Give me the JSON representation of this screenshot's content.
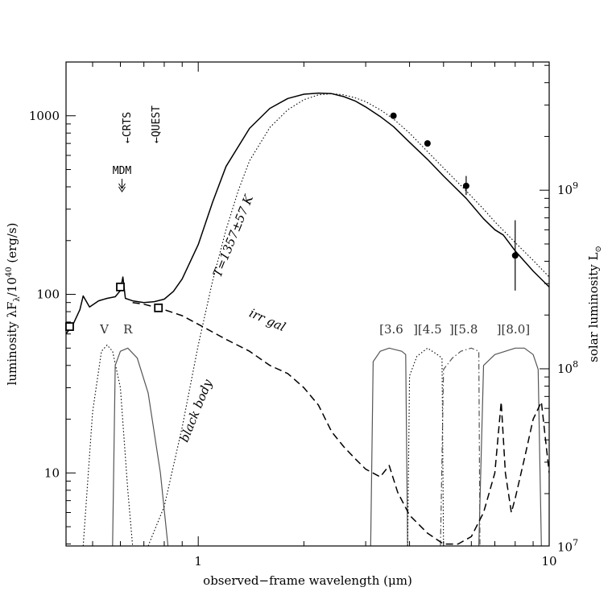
{
  "chart_data": {
    "type": "line",
    "xlabel": "observed−frame wavelength (μm)",
    "ylabel": "luminosity λF",
    "ylabel_sub": "λ",
    "ylabel_tail": "/10",
    "ylabel_exp": "40",
    "ylabel_units": " (erg/s)",
    "ylabel_right": "solar luminosity L",
    "ylabel_right_sub": "⊙",
    "xscale": "log",
    "yscale": "log",
    "xlim": [
      0.42,
      10
    ],
    "ylim": [
      3.9,
      2000
    ],
    "x_ticklabels": [
      "1",
      "10"
    ],
    "y_ticklabels": [
      "10",
      "100",
      "1000"
    ],
    "y_right_ticklabels": [
      {
        "base": "10",
        "exp": "7"
      },
      {
        "base": "10",
        "exp": "8"
      },
      {
        "base": "10",
        "exp": "9"
      }
    ],
    "filters": [
      {
        "label": "V",
        "center": 0.55
      },
      {
        "label": "R",
        "center": 0.65
      },
      {
        "label": "[3.6",
        "center": 3.6
      },
      {
        "label": "][4.5",
        "center": 4.5
      },
      {
        "label": "][5.8",
        "center": 5.8
      },
      {
        "label": "][8.0]",
        "center": 8.0
      }
    ],
    "annotations": [
      {
        "text": "←CRTS",
        "x": 0.62
      },
      {
        "text": "←QUEST",
        "x": 0.76
      },
      {
        "text": "MDM",
        "x": 0.6
      }
    ],
    "curve_labels": {
      "blackbody_temp": "T=1357±57 K",
      "blackbody": "black body",
      "galaxy": "irr gal"
    },
    "series": [
      {
        "name": "total",
        "style": "solid",
        "x": [
          0.42,
          0.44,
          0.46,
          0.47,
          0.49,
          0.52,
          0.55,
          0.58,
          0.6,
          0.61,
          0.62,
          0.65,
          0.7,
          0.75,
          0.8,
          0.85,
          0.9,
          1.0,
          1.1,
          1.2,
          1.4,
          1.6,
          1.8,
          2.0,
          2.2,
          2.4,
          2.6,
          2.8,
          3.0,
          3.3,
          3.6,
          4.0,
          4.5,
          5.0,
          5.8,
          6.5,
          7.0,
          7.4,
          8.0,
          9.0,
          10.0
        ],
        "values": [
          60,
          68,
          82,
          98,
          85,
          92,
          95,
          97,
          105,
          125,
          95,
          92,
          90,
          91,
          94,
          104,
          122,
          190,
          330,
          520,
          850,
          1100,
          1250,
          1320,
          1340,
          1330,
          1280,
          1210,
          1120,
          990,
          870,
          710,
          570,
          460,
          345,
          265,
          230,
          215,
          175,
          135,
          110
        ]
      },
      {
        "name": "black body",
        "style": "dotted",
        "x": [
          0.72,
          0.8,
          0.9,
          1.0,
          1.1,
          1.2,
          1.3,
          1.4,
          1.6,
          1.8,
          2.0,
          2.2,
          2.4,
          2.6,
          2.8,
          3.0,
          3.3,
          3.6,
          4.0,
          4.5,
          5.0,
          5.8,
          6.5,
          7.0,
          8.0,
          9.0,
          10.0
        ],
        "values": [
          3.9,
          6.5,
          18,
          52,
          120,
          230,
          380,
          560,
          860,
          1080,
          1230,
          1310,
          1330,
          1310,
          1260,
          1200,
          1080,
          960,
          800,
          630,
          510,
          380,
          300,
          255,
          195,
          155,
          125
        ]
      },
      {
        "name": "irr gal",
        "style": "dashed",
        "x": [
          0.65,
          0.7,
          0.75,
          0.8,
          0.9,
          1.0,
          1.2,
          1.4,
          1.6,
          1.8,
          2.0,
          2.2,
          2.4,
          2.6,
          2.8,
          3.0,
          3.3,
          3.5,
          3.7,
          4.0,
          4.5,
          5.0,
          5.5,
          6.0,
          6.5,
          7.0,
          7.3,
          7.5,
          7.8,
          8.0,
          8.5,
          9.0,
          9.5,
          10.0
        ],
        "values": [
          90,
          88,
          85,
          82,
          76,
          68,
          56,
          48,
          40,
          36,
          30,
          24,
          17,
          14,
          12,
          10.5,
          9.5,
          11,
          7.8,
          5.8,
          4.6,
          4.0,
          4.0,
          4.4,
          6.0,
          10,
          25,
          10,
          6.0,
          7.2,
          12,
          20,
          25,
          10
        ]
      }
    ],
    "photometry": [
      {
        "x": 0.43,
        "y": 66,
        "marker": "open-square"
      },
      {
        "x": 0.6,
        "y": 110,
        "marker": "open-square"
      },
      {
        "x": 0.77,
        "y": 84,
        "marker": "open-square"
      },
      {
        "x": 3.6,
        "y": 1000,
        "marker": "filled-circle"
      },
      {
        "x": 4.5,
        "y": 700,
        "marker": "filled-circle"
      },
      {
        "x": 5.8,
        "y": 405,
        "marker": "filled-circle",
        "yerr": [
          360,
          460
        ]
      },
      {
        "x": 8.0,
        "y": 165,
        "marker": "filled-circle",
        "yerr": [
          105,
          260
        ]
      }
    ],
    "filter_curves": [
      {
        "name": "V",
        "style": "dotted",
        "x": [
          0.47,
          0.5,
          0.53,
          0.55,
          0.57,
          0.6,
          0.63,
          0.65
        ],
        "values": [
          3.9,
          22,
          48,
          52,
          48,
          30,
          8,
          3.9
        ]
      },
      {
        "name": "R",
        "style": "solid-gray",
        "x": [
          0.57,
          0.58,
          0.6,
          0.63,
          0.67,
          0.72,
          0.78,
          0.82
        ],
        "values": [
          3.9,
          40,
          48,
          50,
          44,
          28,
          10,
          3.9
        ]
      },
      {
        "name": "[3.6",
        "style": "solid-gray",
        "x": [
          3.1,
          3.15,
          3.3,
          3.5,
          3.8,
          3.9,
          3.95
        ],
        "values": [
          3.9,
          42,
          48,
          50,
          48,
          46,
          3.9
        ]
      },
      {
        "name": "][4.5",
        "style": "dotted",
        "x": [
          3.95,
          4.0,
          4.2,
          4.5,
          4.8,
          4.95,
          5.0
        ],
        "values": [
          3.9,
          35,
          45,
          50,
          46,
          44,
          3.9
        ]
      },
      {
        "name": "][5.8",
        "style": "dashdot-gray",
        "x": [
          4.9,
          5.0,
          5.3,
          5.6,
          6.0,
          6.3,
          6.35
        ],
        "values": [
          3.9,
          38,
          44,
          48,
          50,
          48,
          3.9
        ]
      },
      {
        "name": "][8.0]",
        "style": "solid-gray",
        "x": [
          6.3,
          6.5,
          7.0,
          7.5,
          8.0,
          8.5,
          9.0,
          9.3,
          9.5
        ],
        "values": [
          3.9,
          40,
          46,
          48,
          50,
          50,
          46,
          38,
          3.9
        ]
      }
    ]
  }
}
